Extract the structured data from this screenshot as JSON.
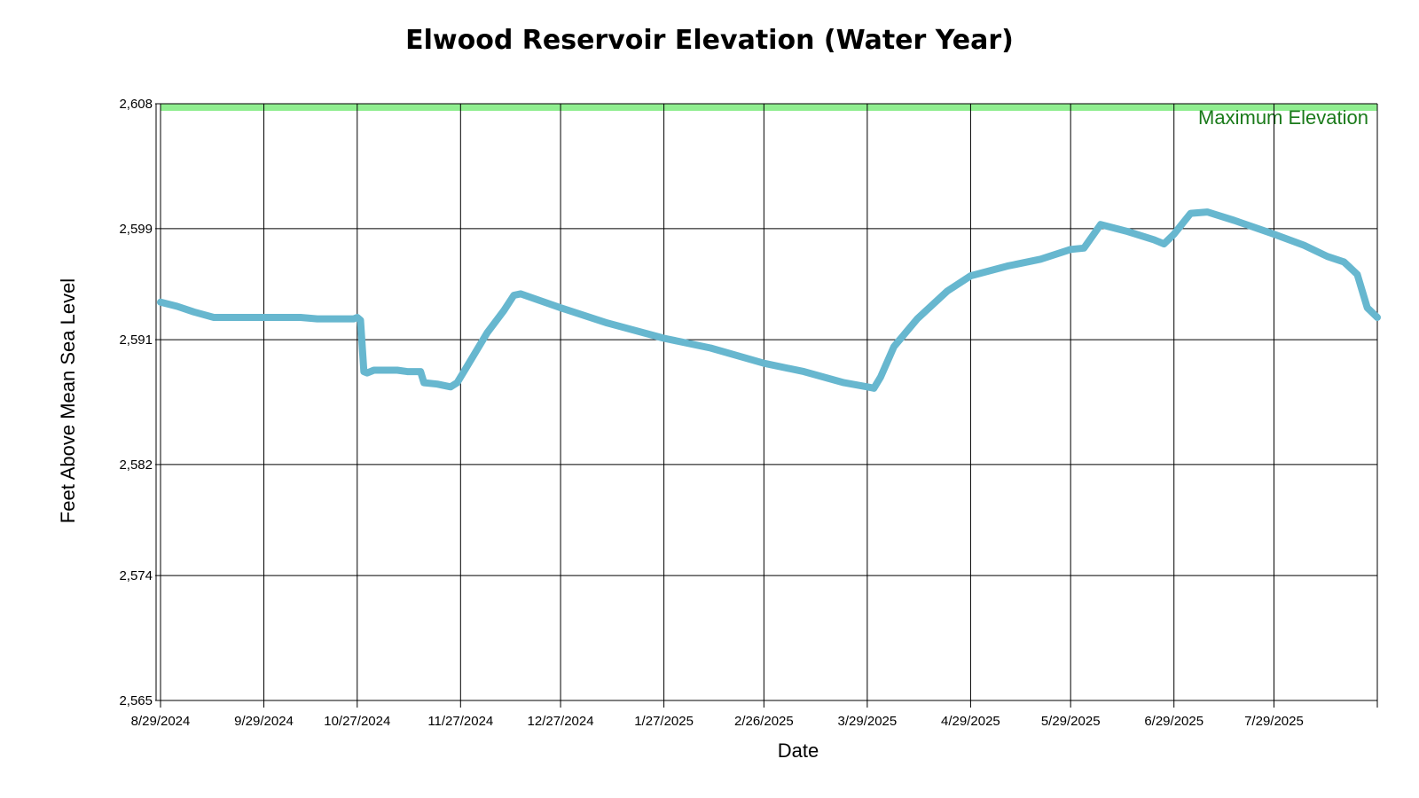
{
  "chart_data": {
    "type": "line",
    "title": "Elwood Reservoir Elevation (Water Year)",
    "xlabel": "Date",
    "ylabel": "Feet Above Mean Sea Level",
    "x_range": [
      "2024-08-29",
      "2025-08-29"
    ],
    "ylim": [
      2565,
      2608
    ],
    "y_ticks": [
      2565,
      2574,
      2582,
      2591,
      2599,
      2608
    ],
    "y_tick_labels": [
      "2,565",
      "2,574",
      "2,582",
      "2,591",
      "2,599",
      "2,608"
    ],
    "x_ticks": [
      "2024-08-29",
      "2024-09-29",
      "2024-10-27",
      "2024-11-27",
      "2024-12-27",
      "2025-01-27",
      "2025-02-26",
      "2025-03-29",
      "2025-04-29",
      "2025-05-29",
      "2025-06-29",
      "2025-07-29"
    ],
    "x_tick_labels": [
      "8/29/2024",
      "9/29/2024",
      "10/27/2024",
      "11/27/2024",
      "12/27/2024",
      "1/27/2025",
      "2/26/2025",
      "3/29/2025",
      "4/29/2025",
      "5/29/2025",
      "6/29/2025",
      "7/29/2025"
    ],
    "grid": true,
    "reference_line": {
      "label": "Maximum Elevation",
      "value": 2608,
      "color": "#90ee90",
      "label_color": "#1a7a1a"
    },
    "series": [
      {
        "color": "#67b7cf",
        "points": [
          [
            "2024-08-29",
            2593.7
          ],
          [
            "2024-09-03",
            2593.4
          ],
          [
            "2024-09-08",
            2593.0
          ],
          [
            "2024-09-14",
            2592.6
          ],
          [
            "2024-09-20",
            2592.6
          ],
          [
            "2024-10-01",
            2592.6
          ],
          [
            "2024-10-10",
            2592.6
          ],
          [
            "2024-10-15",
            2592.5
          ],
          [
            "2024-10-26",
            2592.5
          ],
          [
            "2024-10-27",
            2592.6
          ],
          [
            "2024-10-28",
            2592.4
          ],
          [
            "2024-10-29",
            2588.7
          ],
          [
            "2024-10-30",
            2588.6
          ],
          [
            "2024-11-01",
            2588.8
          ],
          [
            "2024-11-08",
            2588.8
          ],
          [
            "2024-11-11",
            2588.7
          ],
          [
            "2024-11-15",
            2588.7
          ],
          [
            "2024-11-16",
            2587.9
          ],
          [
            "2024-11-20",
            2587.8
          ],
          [
            "2024-11-24",
            2587.6
          ],
          [
            "2024-11-26",
            2587.9
          ],
          [
            "2024-11-28",
            2588.7
          ],
          [
            "2024-12-05",
            2591.5
          ],
          [
            "2024-12-10",
            2593.1
          ],
          [
            "2024-12-13",
            2594.2
          ],
          [
            "2024-12-15",
            2594.3
          ],
          [
            "2024-12-27",
            2593.3
          ],
          [
            "2025-01-10",
            2592.2
          ],
          [
            "2025-01-27",
            2591.1
          ],
          [
            "2025-02-10",
            2590.4
          ],
          [
            "2025-02-26",
            2589.3
          ],
          [
            "2025-03-10",
            2588.7
          ],
          [
            "2025-03-22",
            2587.9
          ],
          [
            "2025-03-29",
            2587.6
          ],
          [
            "2025-03-31",
            2587.5
          ],
          [
            "2025-04-02",
            2588.3
          ],
          [
            "2025-04-06",
            2590.5
          ],
          [
            "2025-04-13",
            2592.5
          ],
          [
            "2025-04-22",
            2594.5
          ],
          [
            "2025-04-29",
            2595.6
          ],
          [
            "2025-05-10",
            2596.3
          ],
          [
            "2025-05-20",
            2596.8
          ],
          [
            "2025-05-29",
            2597.5
          ],
          [
            "2025-06-02",
            2597.6
          ],
          [
            "2025-06-07",
            2599.3
          ],
          [
            "2025-06-15",
            2598.8
          ],
          [
            "2025-06-23",
            2598.2
          ],
          [
            "2025-06-26",
            2597.9
          ],
          [
            "2025-06-29",
            2598.6
          ],
          [
            "2025-07-04",
            2600.1
          ],
          [
            "2025-07-09",
            2600.2
          ],
          [
            "2025-07-17",
            2599.6
          ],
          [
            "2025-07-29",
            2598.6
          ],
          [
            "2025-08-07",
            2597.8
          ],
          [
            "2025-08-14",
            2597.0
          ],
          [
            "2025-08-19",
            2596.6
          ],
          [
            "2025-08-23",
            2595.7
          ],
          [
            "2025-08-26",
            2593.3
          ],
          [
            "2025-08-29",
            2592.6
          ]
        ]
      }
    ]
  }
}
